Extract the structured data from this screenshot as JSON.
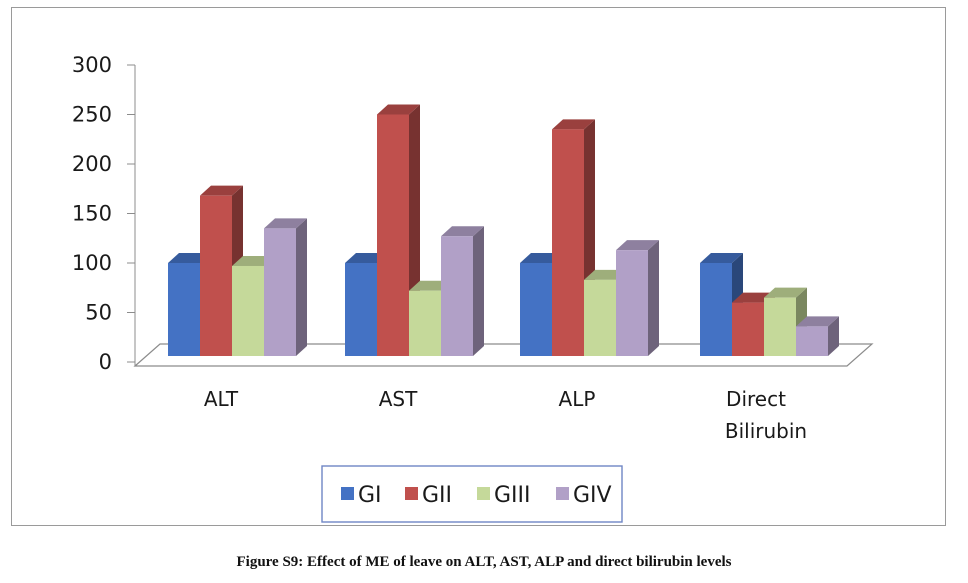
{
  "chart_data": {
    "type": "bar",
    "categories": [
      "ALT",
      "AST",
      "ALP",
      "Direct Bilirubin"
    ],
    "series": [
      {
        "name": "GI",
        "color": "#4472c4",
        "values": [
          100,
          100,
          100,
          100
        ]
      },
      {
        "name": "GII",
        "color": "#c0504d",
        "values": [
          168,
          250,
          235,
          60
        ]
      },
      {
        "name": "GIII",
        "color": "#c5d99a",
        "values": [
          97,
          72,
          83,
          65
        ]
      },
      {
        "name": "GIV",
        "color": "#b1a0c7",
        "values": [
          135,
          127,
          113,
          36
        ]
      }
    ],
    "yticks": [
      0,
      50,
      100,
      150,
      200,
      250,
      300
    ],
    "ylim": [
      0,
      300
    ],
    "grid": false,
    "legend_position": "bottom",
    "three_d": true
  },
  "caption": "Figure S9: Effect of ME of leave on ALT, AST, ALP and direct bilirubin levels"
}
